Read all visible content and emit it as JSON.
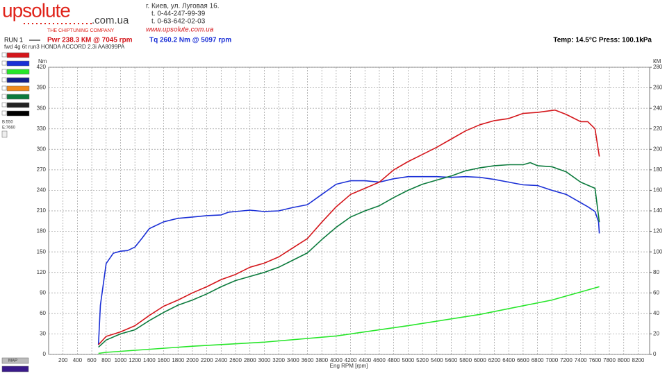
{
  "header": {
    "logo": "upsolute",
    "logo_domain": ".com.ua",
    "tagline": "THE CHIPTUNING COMPANY",
    "address": "г. Киев, ул. Луговая 16.",
    "phone1": "t. 0-44-247-99-39",
    "phone2": "t. 0-63-642-02-03",
    "website": "www.upsolute.com.ua",
    "run": "RUN 1",
    "power_summary": "Pwr  238.3 КМ @ 7045 rpm",
    "torque_summary": "Tq 260.2 Nm @ 5097 rpm",
    "conditions": "Temp: 14.5°C    Press: 100.1kPa",
    "description": "fwd 4g 6t run3 HONDA ACCORD 2.3i AA8099PA",
    "begin": "B:550",
    "end": "E:7660",
    "map_button": "MAP"
  },
  "chart_data": {
    "type": "line",
    "xlabel": "Eng RPM [rpm]",
    "ylabel": "Nm",
    "y2label": "КМ",
    "grid": true,
    "xlim": [
      0,
      8360
    ],
    "xticks": [
      200,
      400,
      600,
      800,
      1000,
      1200,
      1400,
      1600,
      1800,
      2000,
      2200,
      2400,
      2600,
      2800,
      3000,
      3200,
      3400,
      3600,
      3800,
      4000,
      4200,
      4400,
      4600,
      4800,
      5000,
      5200,
      5400,
      5600,
      5800,
      6000,
      6200,
      6400,
      6600,
      6800,
      7000,
      7200,
      7400,
      7600,
      7800,
      8000,
      8200
    ],
    "ylim": [
      0,
      420
    ],
    "yticks": [
      0,
      30,
      60,
      90,
      120,
      150,
      180,
      210,
      240,
      270,
      300,
      330,
      360,
      390,
      420
    ],
    "y2lim": [
      0,
      280
    ],
    "y2ticks": [
      0,
      20,
      40,
      60,
      80,
      100,
      120,
      140,
      160,
      180,
      200,
      220,
      240,
      260,
      280
    ],
    "series": [
      {
        "color": "#1a2fd6",
        "axis": "y",
        "x": [
          693,
          720,
          800,
          900,
          1000,
          1100,
          1200,
          1300,
          1400,
          1600,
          1800,
          2000,
          2200,
          2400,
          2500,
          2600,
          2800,
          3000,
          3200,
          3400,
          3600,
          3800,
          4000,
          4200,
          4400,
          4600,
          4800,
          5000,
          5200,
          5400,
          5600,
          5800,
          6000,
          6200,
          6400,
          6600,
          6800,
          7000,
          7200,
          7400,
          7500,
          7600,
          7650,
          7660
        ],
        "values": [
          14,
          72,
          133,
          148,
          151,
          152,
          157,
          170,
          184,
          194,
          199,
          201,
          203,
          204,
          208,
          209,
          211,
          209,
          210,
          215,
          219,
          234,
          249,
          254,
          254,
          252,
          257,
          260,
          260,
          260,
          259,
          260,
          259,
          256,
          252,
          248,
          247,
          240,
          234,
          222,
          216,
          209,
          194,
          177
        ]
      },
      {
        "color": "#d4161b",
        "axis": "y2",
        "x": [
          693,
          800,
          1000,
          1200,
          1400,
          1600,
          1800,
          2000,
          2200,
          2400,
          2600,
          2800,
          3000,
          3200,
          3400,
          3600,
          3800,
          4000,
          4200,
          4400,
          4600,
          4800,
          5000,
          5200,
          5400,
          5600,
          5800,
          6000,
          6200,
          6400,
          6600,
          6800,
          7045,
          7200,
          7400,
          7500,
          7600,
          7660
        ],
        "values": [
          9.5,
          17.6,
          22,
          28,
          38,
          47,
          53,
          60,
          66,
          73,
          78,
          85,
          89,
          95,
          104,
          113,
          129,
          144,
          156,
          162,
          168,
          180,
          188,
          195,
          202,
          210,
          218,
          224,
          228,
          230,
          235,
          236,
          238.3,
          234,
          227,
          227,
          220,
          193
        ]
      },
      {
        "color": "#0b7a3c",
        "axis": "y2",
        "x": [
          693,
          800,
          1000,
          1200,
          1400,
          1600,
          1800,
          2000,
          2200,
          2400,
          2600,
          2800,
          3000,
          3200,
          3400,
          3600,
          3800,
          4000,
          4200,
          4400,
          4600,
          4800,
          5000,
          5200,
          5400,
          5600,
          5800,
          6000,
          6200,
          6400,
          6600,
          6700,
          6800,
          7000,
          7200,
          7400,
          7600,
          7660
        ],
        "values": [
          7,
          14,
          20,
          24,
          33,
          41,
          48,
          53,
          59,
          66,
          72,
          76,
          80,
          85,
          92,
          99,
          112,
          124,
          134,
          140,
          145,
          153,
          160,
          166,
          170,
          174,
          179,
          182,
          184,
          185,
          185,
          187,
          184,
          183,
          178,
          168,
          162,
          129
        ]
      },
      {
        "color": "#27e62a",
        "axis": "y2",
        "x": [
          693,
          800,
          2000,
          3000,
          4000,
          5000,
          6000,
          7000,
          7660
        ],
        "values": [
          1,
          2,
          8,
          12,
          18,
          28,
          39,
          53,
          66
        ]
      }
    ]
  }
}
